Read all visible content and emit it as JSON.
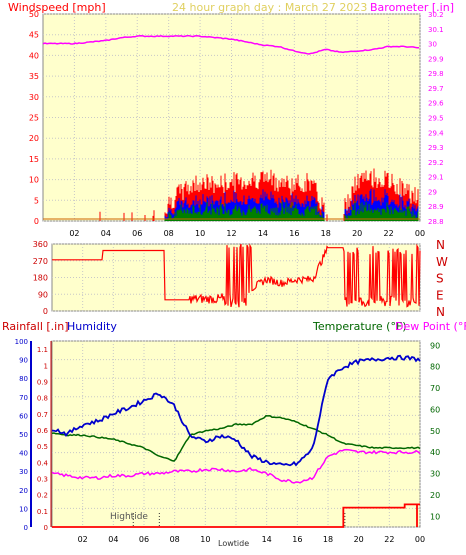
{
  "title": "24 hour graph day : March 27 2023",
  "colors": {
    "background": "#ffffcc",
    "grid": "#c8c8c8",
    "wind": "#ff0000",
    "wind_avg": "#0000ff",
    "wind_min": "#008000",
    "barometer": "#ff00ff",
    "direction": "#ff0000",
    "rain": "#ff0000",
    "humidity": "#0000cc",
    "temperature": "#006600",
    "dewpoint": "#ff00ff",
    "left_axis_pink": "#ff66ff",
    "dark_red": "#cc0000"
  },
  "hours": [
    "02",
    "04",
    "06",
    "08",
    "10",
    "12",
    "14",
    "16",
    "18",
    "20",
    "22",
    "00"
  ],
  "panel1": {
    "left_label": "Windspeed [mph]",
    "right_label": "Barometer [.in]",
    "left_ticks": [
      "50",
      "45",
      "40",
      "35",
      "30",
      "25",
      "20",
      "15",
      "10",
      "5",
      "0"
    ],
    "right_ticks": [
      "30.2",
      "30.1",
      "30",
      "29.9",
      "29.8",
      "29.7",
      "29.6",
      "29.5",
      "29.4",
      "29.3",
      "29.2",
      "29.1",
      "29",
      "28.9",
      "28.8"
    ]
  },
  "panel2": {
    "left_ticks": [
      "360",
      "270",
      "180",
      "90",
      "0"
    ],
    "right_letters": [
      "N",
      "W",
      "S",
      "E",
      "N"
    ]
  },
  "panel3": {
    "rain_label": "Rainfall [.in]",
    "humidity_label": "Humidity",
    "temp_label": "Temperature (°F)",
    "dew_label": "Dew Point (°F)",
    "rain_ticks": [
      "1.1",
      "1",
      "0.9",
      "0.8",
      "0.7",
      "0.6",
      "0.5",
      "0.4",
      "0.3",
      "0.2",
      "0.1",
      "0"
    ],
    "humidity_ticks": [
      "100",
      "90",
      "80",
      "70",
      "60",
      "50",
      "40",
      "30",
      "20",
      "10",
      "0"
    ],
    "temp_ticks": [
      "90",
      "80",
      "70",
      "60",
      "50",
      "40",
      "30",
      "20",
      "10"
    ],
    "hightide_label": "Hightide",
    "lowtide_label": "Lowtide"
  },
  "chart_data": [
    {
      "type": "line",
      "title": "24 hour graph day : March 27 2023",
      "xlabel": "",
      "ylabel": "Windspeed [mph]",
      "ylim": [
        0,
        50
      ],
      "y2label": "Barometer [.in]",
      "y2lim": [
        28.8,
        30.2
      ],
      "x": [
        0,
        1,
        2,
        3,
        4,
        5,
        6,
        7,
        7.5,
        8,
        9,
        10,
        11,
        12,
        13,
        14,
        15,
        16,
        17,
        18,
        19,
        20,
        21,
        22,
        23,
        24
      ],
      "series": [
        {
          "values": [
            0,
            1,
            0,
            1,
            0,
            1,
            0,
            0,
            1,
            4,
            7,
            9,
            8,
            9,
            9,
            10,
            9,
            8,
            9,
            2,
            1,
            9,
            10,
            9,
            7,
            5
          ]
        },
        {
          "values": [
            30.0,
            30.0,
            30.0,
            30.01,
            30.02,
            30.04,
            30.05,
            30.05,
            30.05,
            30.05,
            30.05,
            30.05,
            30.04,
            30.03,
            30.01,
            29.99,
            29.98,
            29.95,
            29.93,
            29.96,
            29.94,
            29.95,
            29.96,
            29.98,
            29.98,
            29.97
          ]
        }
      ]
    },
    {
      "type": "scatter",
      "xlabel": "",
      "ylabel": "",
      "ylim": [
        0,
        360
      ],
      "x": [
        0,
        2,
        3.5,
        6,
        9,
        10,
        11,
        11.5,
        12,
        13,
        14,
        15,
        16,
        17,
        18,
        19,
        20,
        21,
        22,
        23,
        24
      ],
      "series": [
        {
          "values": [
            275,
            275,
            330,
            320,
            50,
            60,
            80,
            330,
            40,
            120,
            170,
            150,
            170,
            170,
            340,
            40,
            60,
            300,
            30,
            280,
            60
          ]
        }
      ]
    },
    {
      "type": "line",
      "xlabel": "",
      "ylabel": "Humidity",
      "ylim": [
        0,
        100
      ],
      "x": [
        0,
        1,
        2,
        3,
        4,
        5,
        6,
        7,
        8,
        9,
        10,
        11,
        12,
        13,
        14,
        15,
        16,
        17,
        18,
        19,
        20,
        21,
        22,
        23,
        24
      ],
      "series": [
        {
          "name": "Humidity",
          "values": [
            53,
            50,
            55,
            57,
            61,
            64,
            68,
            72,
            65,
            49,
            46,
            49,
            47,
            38,
            35,
            33,
            34,
            42,
            80,
            86,
            89,
            90,
            91,
            91,
            90
          ]
        },
        {
          "name": "Temperature (°F)",
          "values": [
            49,
            48,
            48,
            47,
            46,
            44,
            42,
            38,
            36,
            48,
            50,
            51,
            53,
            53,
            57,
            56,
            54,
            51,
            48,
            44,
            43,
            42,
            42,
            42,
            42
          ]
        },
        {
          "name": "Dew Point (°F)",
          "values": [
            30,
            29,
            28,
            28,
            29,
            29,
            30,
            30,
            31,
            31,
            32,
            32,
            31,
            32,
            30,
            27,
            26,
            28,
            38,
            41,
            40,
            40,
            40,
            40,
            40
          ]
        },
        {
          "name": "Rainfall [.in]",
          "values": [
            0,
            0,
            0,
            0,
            0,
            0,
            0,
            0,
            0,
            0,
            0,
            0,
            0,
            0,
            0,
            0,
            0,
            0,
            0,
            0.12,
            0.12,
            0.12,
            0.12,
            0.14,
            0.14
          ]
        }
      ]
    }
  ]
}
